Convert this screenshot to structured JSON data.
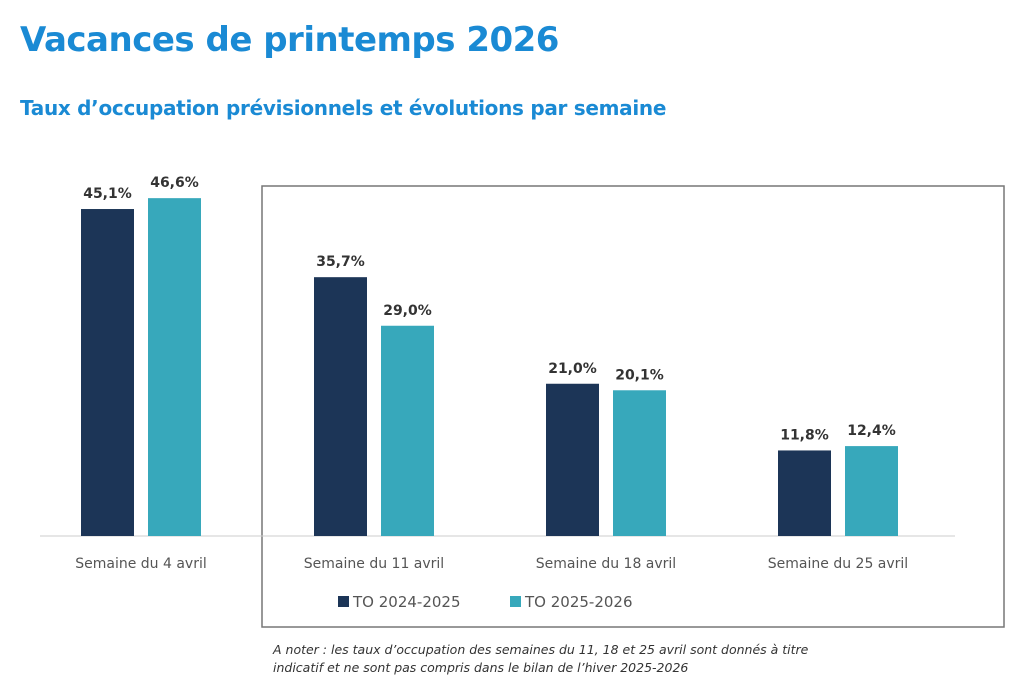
{
  "title": "Vacances de printemps 2026",
  "subtitle": "Taux d’occupation prévisionnels et évolutions par semaine",
  "colors": {
    "title": "#1a8ad4",
    "series_2024_2025": "#1c3557",
    "series_2025_2026": "#37a8bb",
    "box": "#777777"
  },
  "chart_data": {
    "type": "bar",
    "categories": [
      "Semaine du 4 avril",
      "Semaine du 11 avril",
      "Semaine du 18 avril",
      "Semaine du 25 avril"
    ],
    "series": [
      {
        "name": "TO 2024-2025",
        "values": [
          45.1,
          35.7,
          21.0,
          11.8
        ],
        "labels": [
          "45,1%",
          "35,7%",
          "21,0%",
          "11,8%"
        ],
        "color": "#1c3557"
      },
      {
        "name": "TO 2025-2026",
        "values": [
          46.6,
          29.0,
          20.1,
          12.4
        ],
        "labels": [
          "46,6%",
          "29,0%",
          "20,1%",
          "12,4%"
        ],
        "color": "#37a8bb"
      }
    ],
    "ylim": [
      0,
      50
    ],
    "grid": false,
    "legend": "bottom",
    "annotation": "Weeks of 11, 18 and 25 April enclosed in a box"
  },
  "note": {
    "line1": "A noter : les taux d’occupation des semaines du 11, 18 et 25 avril sont donnés à titre",
    "line2": "indicatif et ne sont pas compris dans le bilan de l’hiver 2025-2026"
  }
}
